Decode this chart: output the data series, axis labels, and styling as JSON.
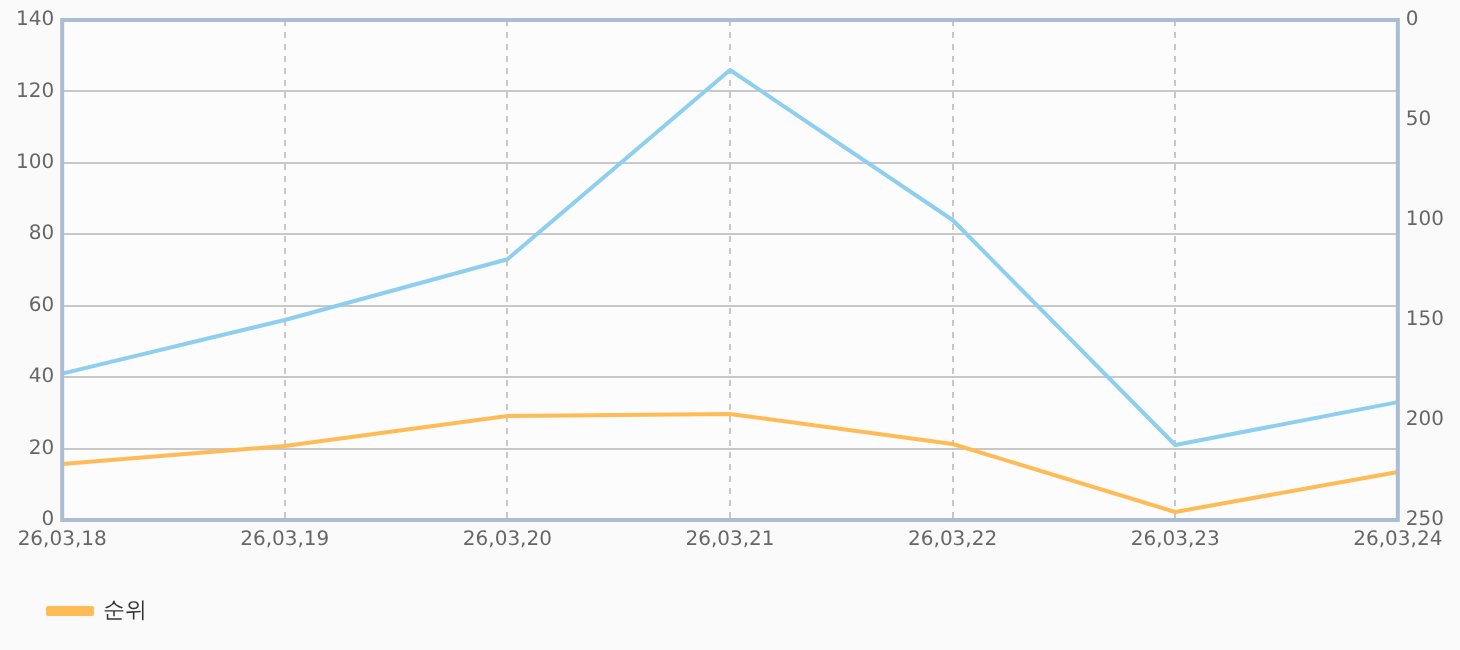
{
  "chart_data": {
    "type": "line",
    "categories": [
      "26,03,18",
      "26,03,19",
      "26,03,20",
      "26,03,21",
      "26,03,22",
      "26,03,23",
      "26,03,24"
    ],
    "series": [
      {
        "color": "#8ecfef",
        "values": [
          41,
          56,
          73,
          126,
          84,
          21,
          33
        ]
      },
      {
        "name": "순위",
        "color": "#ffbb55",
        "axis": "y2",
        "values": [
          222,
          213,
          198,
          197,
          212,
          246,
          226
        ]
      }
    ],
    "ylim": [
      0,
      140
    ],
    "yticks": [
      0,
      20,
      40,
      60,
      80,
      100,
      120,
      140
    ],
    "y2lim": [
      250,
      0
    ],
    "y2ticks": [
      0,
      50,
      100,
      150,
      200,
      250
    ],
    "grid": true,
    "legend": "bottom left",
    "marker": "none",
    "line_style": "solid"
  }
}
